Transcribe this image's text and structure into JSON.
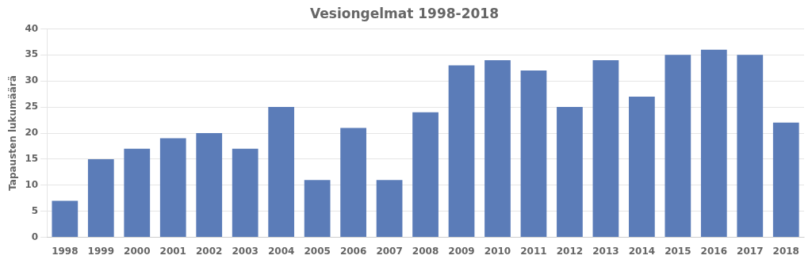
{
  "chart_data": {
    "type": "bar",
    "title": "Vesiongelmat 1998-2018",
    "ylabel": "Tapausten lukumäärä",
    "categories": [
      "1998",
      "1999",
      "2000",
      "2001",
      "2002",
      "2003",
      "2004",
      "2005",
      "2006",
      "2007",
      "2008",
      "2009",
      "2010",
      "2011",
      "2012",
      "2013",
      "2014",
      "2015",
      "2016",
      "2017",
      "2018"
    ],
    "values": [
      7,
      15,
      17,
      19,
      20,
      17,
      25,
      11,
      21,
      11,
      24,
      33,
      34,
      32,
      25,
      34,
      27,
      35,
      36,
      35,
      22
    ],
    "color": "#5B7CB8",
    "ylim": [
      0,
      40
    ],
    "yticks": [
      0,
      5,
      10,
      15,
      20,
      25,
      30,
      35,
      40
    ],
    "grid": true
  }
}
